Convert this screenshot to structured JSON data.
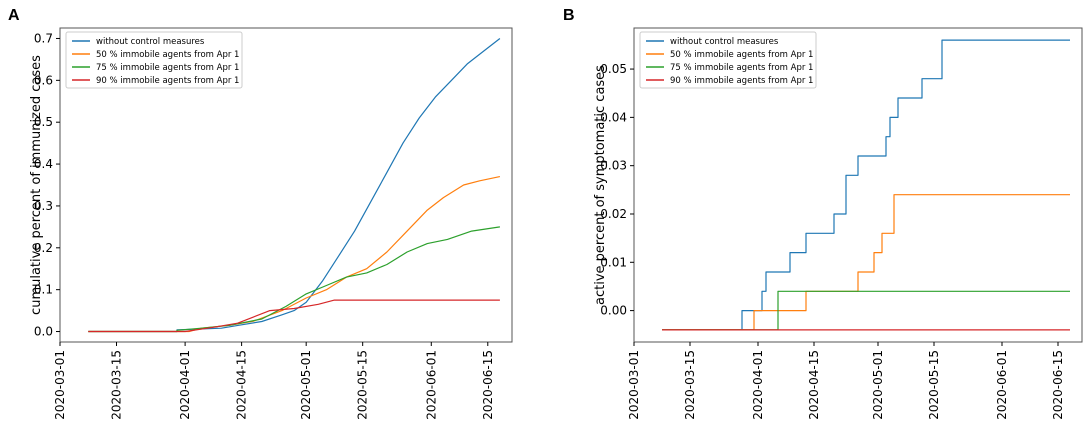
{
  "chart_data": [
    {
      "panel_label": "A",
      "type": "line",
      "title": "",
      "xlabel": "",
      "ylabel": "cumulative percent of immunized cases",
      "ylim": [
        -0.025,
        0.725
      ],
      "yticks": [
        0.0,
        0.1,
        0.2,
        0.3,
        0.4,
        0.5,
        0.6,
        0.7
      ],
      "ytick_labels": [
        "0.0",
        "0.1",
        "0.2",
        "0.3",
        "0.4",
        "0.5",
        "0.6",
        "0.7"
      ],
      "xlim": [
        "2020-03-01",
        "2020-06-21"
      ],
      "xticks": [
        "2020-03-01",
        "2020-03-15",
        "2020-04-01",
        "2020-04-15",
        "2020-05-01",
        "2020-05-15",
        "2020-06-01",
        "2020-06-15"
      ],
      "legend_position": "top-left",
      "series": [
        {
          "name": "without control measures",
          "color": "#1f77b4",
          "points": [
            [
              "2020-03-08",
              0
            ],
            [
              "2020-03-30",
              0
            ],
            [
              "2020-03-30",
              0.004
            ],
            [
              "2020-04-10",
              0.008
            ],
            [
              "2020-04-15",
              0.016
            ],
            [
              "2020-04-20",
              0.024
            ],
            [
              "2020-04-25",
              0.04
            ],
            [
              "2020-04-28",
              0.05
            ],
            [
              "2020-05-01",
              0.07
            ],
            [
              "2020-05-05",
              0.12
            ],
            [
              "2020-05-09",
              0.18
            ],
            [
              "2020-05-13",
              0.24
            ],
            [
              "2020-05-17",
              0.31
            ],
            [
              "2020-05-21",
              0.38
            ],
            [
              "2020-05-25",
              0.45
            ],
            [
              "2020-05-29",
              0.51
            ],
            [
              "2020-06-02",
              0.56
            ],
            [
              "2020-06-06",
              0.6
            ],
            [
              "2020-06-10",
              0.64
            ],
            [
              "2020-06-14",
              0.67
            ],
            [
              "2020-06-18",
              0.7
            ]
          ]
        },
        {
          "name": "50 % immobile agents from Apr 1",
          "color": "#ff7f0e",
          "points": [
            [
              "2020-03-08",
              0
            ],
            [
              "2020-04-02",
              0
            ],
            [
              "2020-04-05",
              0.008
            ],
            [
              "2020-04-12",
              0.015
            ],
            [
              "2020-04-18",
              0.025
            ],
            [
              "2020-04-25",
              0.05
            ],
            [
              "2020-05-01",
              0.08
            ],
            [
              "2020-05-06",
              0.1
            ],
            [
              "2020-05-11",
              0.13
            ],
            [
              "2020-05-16",
              0.15
            ],
            [
              "2020-05-21",
              0.19
            ],
            [
              "2020-05-26",
              0.24
            ],
            [
              "2020-05-31",
              0.29
            ],
            [
              "2020-06-04",
              0.32
            ],
            [
              "2020-06-09",
              0.35
            ],
            [
              "2020-06-13",
              0.36
            ],
            [
              "2020-06-18",
              0.37
            ]
          ]
        },
        {
          "name": "75 % immobile agents from Apr 1",
          "color": "#2ca02c",
          "points": [
            [
              "2020-03-08",
              0
            ],
            [
              "2020-03-30",
              0
            ],
            [
              "2020-03-30",
              0.003
            ],
            [
              "2020-04-05",
              0.008
            ],
            [
              "2020-04-12",
              0.015
            ],
            [
              "2020-04-20",
              0.03
            ],
            [
              "2020-04-26",
              0.06
            ],
            [
              "2020-05-01",
              0.09
            ],
            [
              "2020-05-06",
              0.11
            ],
            [
              "2020-05-11",
              0.13
            ],
            [
              "2020-05-16",
              0.14
            ],
            [
              "2020-05-21",
              0.16
            ],
            [
              "2020-05-26",
              0.19
            ],
            [
              "2020-05-31",
              0.21
            ],
            [
              "2020-06-05",
              0.22
            ],
            [
              "2020-06-11",
              0.24
            ],
            [
              "2020-06-18",
              0.25
            ]
          ]
        },
        {
          "name": "90 % immobile agents from Apr 1",
          "color": "#d62728",
          "points": [
            [
              "2020-03-08",
              0
            ],
            [
              "2020-04-01",
              0
            ],
            [
              "2020-04-08",
              0.01
            ],
            [
              "2020-04-14",
              0.02
            ],
            [
              "2020-04-18",
              0.035
            ],
            [
              "2020-04-22",
              0.05
            ],
            [
              "2020-04-28",
              0.055
            ],
            [
              "2020-05-04",
              0.065
            ],
            [
              "2020-05-08",
              0.075
            ],
            [
              "2020-06-18",
              0.075
            ]
          ]
        }
      ]
    },
    {
      "panel_label": "B",
      "type": "line",
      "title": "",
      "xlabel": "",
      "ylabel": "active percent of symptomatic cases",
      "ylim": [
        -0.0065,
        0.0585
      ],
      "yticks": [
        0.0,
        0.01,
        0.02,
        0.03,
        0.04,
        0.05
      ],
      "ytick_labels": [
        "0.00",
        "0.01",
        "0.02",
        "0.03",
        "0.04",
        "0.05"
      ],
      "xlim": [
        "2020-03-01",
        "2020-06-21"
      ],
      "xticks": [
        "2020-03-01",
        "2020-03-15",
        "2020-04-01",
        "2020-04-15",
        "2020-05-01",
        "2020-05-15",
        "2020-06-01",
        "2020-06-15"
      ],
      "legend_position": "top-left",
      "series": [
        {
          "name": "without control measures",
          "color": "#1f77b4",
          "points": [
            [
              "2020-03-08",
              -0.004
            ],
            [
              "2020-03-28",
              -0.004
            ],
            [
              "2020-03-28",
              0.0
            ],
            [
              "2020-04-02",
              0.0
            ],
            [
              "2020-04-02",
              0.004
            ],
            [
              "2020-04-03",
              0.004
            ],
            [
              "2020-04-03",
              0.008
            ],
            [
              "2020-04-09",
              0.008
            ],
            [
              "2020-04-09",
              0.012
            ],
            [
              "2020-04-13",
              0.012
            ],
            [
              "2020-04-13",
              0.016
            ],
            [
              "2020-04-20",
              0.016
            ],
            [
              "2020-04-20",
              0.02
            ],
            [
              "2020-04-23",
              0.02
            ],
            [
              "2020-04-23",
              0.028
            ],
            [
              "2020-04-26",
              0.028
            ],
            [
              "2020-04-26",
              0.032
            ],
            [
              "2020-05-03",
              0.032
            ],
            [
              "2020-05-03",
              0.036
            ],
            [
              "2020-05-04",
              0.036
            ],
            [
              "2020-05-04",
              0.04
            ],
            [
              "2020-05-06",
              0.04
            ],
            [
              "2020-05-06",
              0.044
            ],
            [
              "2020-05-12",
              0.044
            ],
            [
              "2020-05-12",
              0.048
            ],
            [
              "2020-05-17",
              0.048
            ],
            [
              "2020-05-17",
              0.056
            ],
            [
              "2020-06-18",
              0.056
            ]
          ]
        },
        {
          "name": "50 % immobile agents from Apr 1",
          "color": "#ff7f0e",
          "points": [
            [
              "2020-03-08",
              -0.004
            ],
            [
              "2020-03-31",
              -0.004
            ],
            [
              "2020-03-31",
              0.0
            ],
            [
              "2020-04-13",
              0.0
            ],
            [
              "2020-04-13",
              0.004
            ],
            [
              "2020-04-26",
              0.004
            ],
            [
              "2020-04-26",
              0.008
            ],
            [
              "2020-04-30",
              0.008
            ],
            [
              "2020-04-30",
              0.012
            ],
            [
              "2020-05-02",
              0.012
            ],
            [
              "2020-05-02",
              0.016
            ],
            [
              "2020-05-05",
              0.016
            ],
            [
              "2020-05-05",
              0.024
            ],
            [
              "2020-06-18",
              0.024
            ]
          ]
        },
        {
          "name": "75 % immobile agents from Apr 1",
          "color": "#2ca02c",
          "points": [
            [
              "2020-03-08",
              -0.004
            ],
            [
              "2020-04-06",
              -0.004
            ],
            [
              "2020-04-06",
              0.004
            ],
            [
              "2020-06-18",
              0.004
            ]
          ]
        },
        {
          "name": "90 % immobile agents from Apr 1",
          "color": "#d62728",
          "points": [
            [
              "2020-03-08",
              -0.004
            ],
            [
              "2020-06-18",
              -0.004
            ]
          ]
        }
      ]
    }
  ]
}
